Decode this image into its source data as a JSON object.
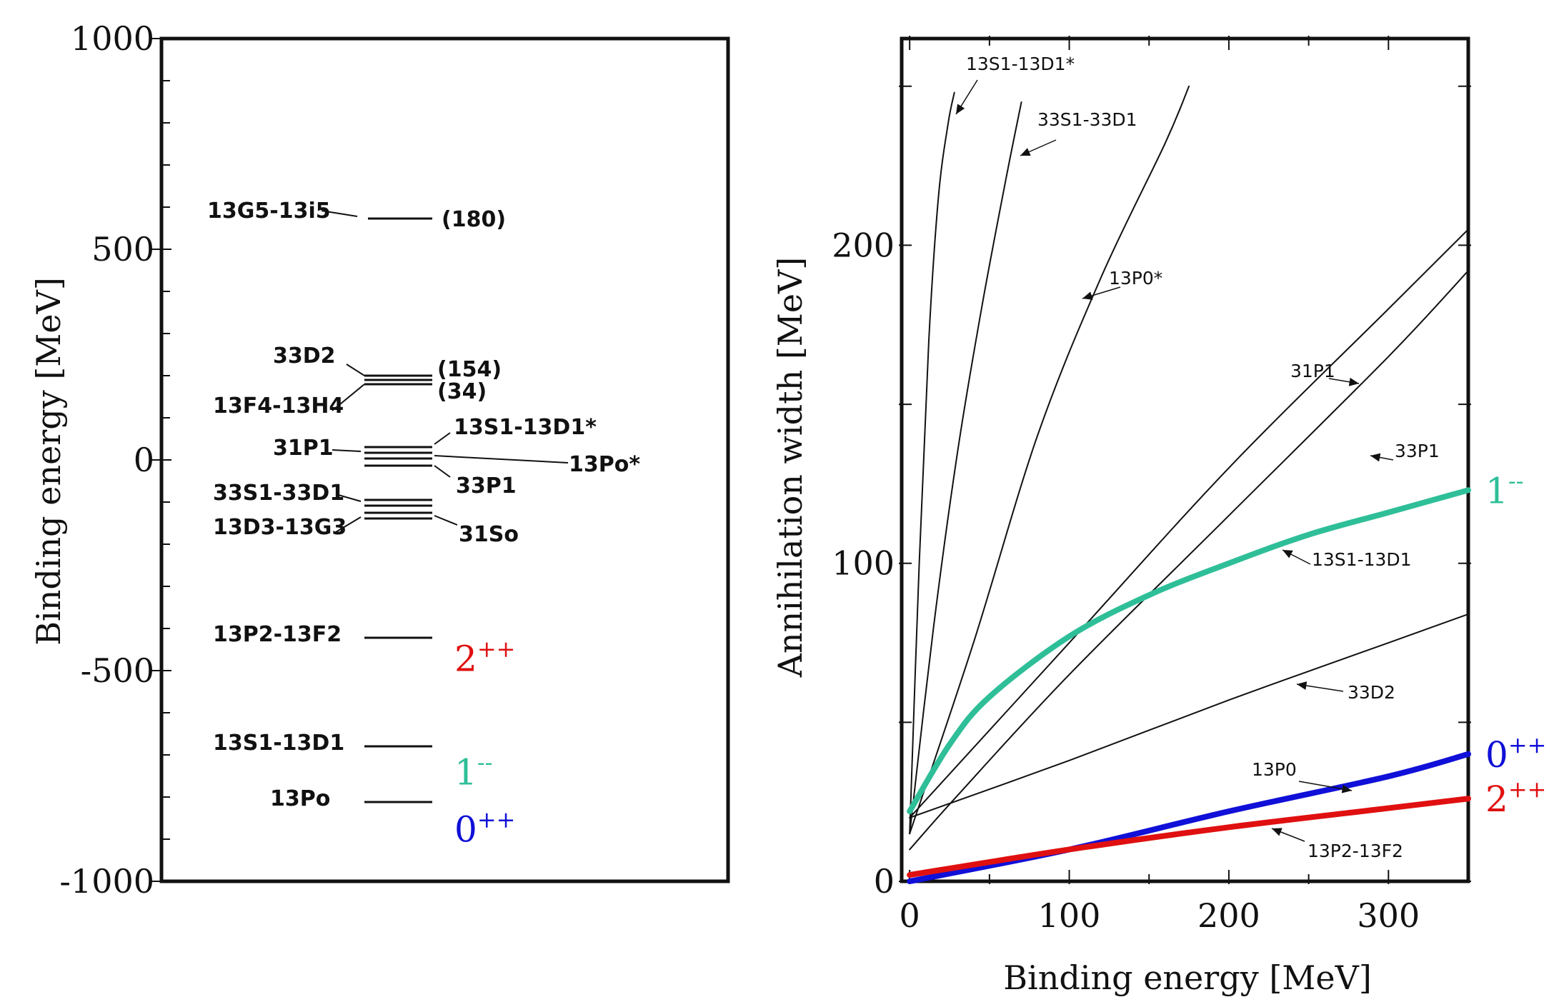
{
  "colors": {
    "j1": "#2fbf98",
    "j0": "#1010d8",
    "j2": "#e01010",
    "ink": "#111111"
  },
  "chart_data": [
    {
      "type": "level-diagram",
      "ylabel": "Binding energy [MeV]",
      "ylim": [
        -1000,
        1000
      ],
      "yticks": [
        "1000",
        "500",
        "0",
        "-500",
        "-1000"
      ],
      "levels": [
        {
          "label": "13G5-13I5",
          "value": 555,
          "annotation": "(180)"
        },
        {
          "label": "33D2",
          "value": 170,
          "annotation": "(154)"
        },
        {
          "label": "13F4-13H4",
          "value": 160,
          "annotation": "(34)"
        },
        {
          "label": "13S1-13D1*",
          "value": -5
        },
        {
          "label": "31P1",
          "value": -18
        },
        {
          "label": "13P0*",
          "value": -30
        },
        {
          "label": "33P1",
          "value": -50
        },
        {
          "label": "33S1-33D1",
          "value": -135
        },
        {
          "label": "13D3-13G3",
          "value": -165
        },
        {
          "label": "31S0",
          "value": -180
        },
        {
          "label": "13P2-13F2",
          "value": -470,
          "jpc": "2++"
        },
        {
          "label": "13S1-13D1",
          "value": -740,
          "jpc": "1--"
        },
        {
          "label": "13P0",
          "value": -875,
          "jpc": "0++"
        }
      ],
      "marks": [
        {
          "jpc_base": "2",
          "jpc_sup": "++",
          "value": -470,
          "color_key": "j2"
        },
        {
          "jpc_base": "1",
          "jpc_sup": "--",
          "value": -740,
          "color_key": "j1"
        },
        {
          "jpc_base": "0",
          "jpc_sup": "++",
          "value": -875,
          "color_key": "j0"
        }
      ],
      "scan_labels": {
        "g5": "13G5-13i5",
        "g5_val": "(180)",
        "d2": "33D2",
        "d2_val": "(154)",
        "f4": "13F4-13H4",
        "f4_val": "(34)",
        "s1star": "13S1-13D1*",
        "p1": "31P1",
        "p0star": "13Po*",
        "p33": "33P1",
        "s33": "33S1-33D1",
        "s0": "31So",
        "d3": "13D3-13G3",
        "p2": "13P2-13F2",
        "s1": "13S1-13D1",
        "p0": "13Po"
      }
    },
    {
      "type": "line",
      "xlabel": "Binding energy [MeV]",
      "ylabel": "Annihilation width [MeV]",
      "xlim": [
        -5,
        350
      ],
      "ylim": [
        0,
        265
      ],
      "xticks": [
        "0",
        "100",
        "200",
        "300"
      ],
      "yticks": [
        "0",
        "100",
        "200"
      ],
      "series": [
        {
          "name": "13S1-13D1*",
          "x": [
            0,
            6,
            12,
            18,
            24,
            28
          ],
          "y": [
            15,
            100,
            170,
            215,
            238,
            248
          ]
        },
        {
          "name": "33S1-33D1",
          "x": [
            0,
            15,
            30,
            45,
            60,
            70
          ],
          "y": [
            15,
            80,
            135,
            180,
            220,
            245
          ]
        },
        {
          "name": "13P0*",
          "x": [
            0,
            40,
            80,
            120,
            160,
            175
          ],
          "y": [
            15,
            75,
            140,
            190,
            232,
            250
          ]
        },
        {
          "name": "31P1",
          "x": [
            0,
            100,
            200,
            300,
            350
          ],
          "y": [
            20,
            75,
            130,
            180,
            205
          ]
        },
        {
          "name": "33P1",
          "x": [
            0,
            30,
            100,
            200,
            300,
            350
          ],
          "y": [
            10,
            27,
            65,
            115,
            165,
            192
          ]
        },
        {
          "name": "33D2",
          "x": [
            0,
            100,
            200,
            300,
            350
          ],
          "y": [
            20,
            38,
            57,
            75,
            84
          ]
        },
        {
          "name": "13P0",
          "x": [
            0,
            100,
            200,
            300,
            350
          ],
          "y": [
            0,
            10,
            22,
            33,
            40
          ],
          "highlight": "j0",
          "jpc_base": "0",
          "jpc_sup": "++"
        },
        {
          "name": "13P2-13F2",
          "x": [
            0,
            100,
            200,
            300,
            350
          ],
          "y": [
            2,
            10,
            17,
            23,
            26
          ],
          "highlight": "j2",
          "jpc_base": "2",
          "jpc_sup": "++"
        },
        {
          "name": "13S1-13D1",
          "x": [
            0,
            25,
            50,
            100,
            150,
            200,
            250,
            300,
            350
          ],
          "y": [
            22,
            43,
            58,
            77,
            90,
            100,
            109,
            116,
            123
          ],
          "highlight": "j1",
          "jpc_base": "1",
          "jpc_sup": "--"
        }
      ],
      "scan_labels": {
        "s1star": "13S1-13D1*",
        "s33": "33S1-33D1",
        "p0star": "13P0*",
        "p31": "31P1",
        "p33": "33P1",
        "s1": "13S1-13D1",
        "d2": "33D2",
        "p0": "13P0",
        "p2": "13P2-13F2"
      }
    }
  ]
}
